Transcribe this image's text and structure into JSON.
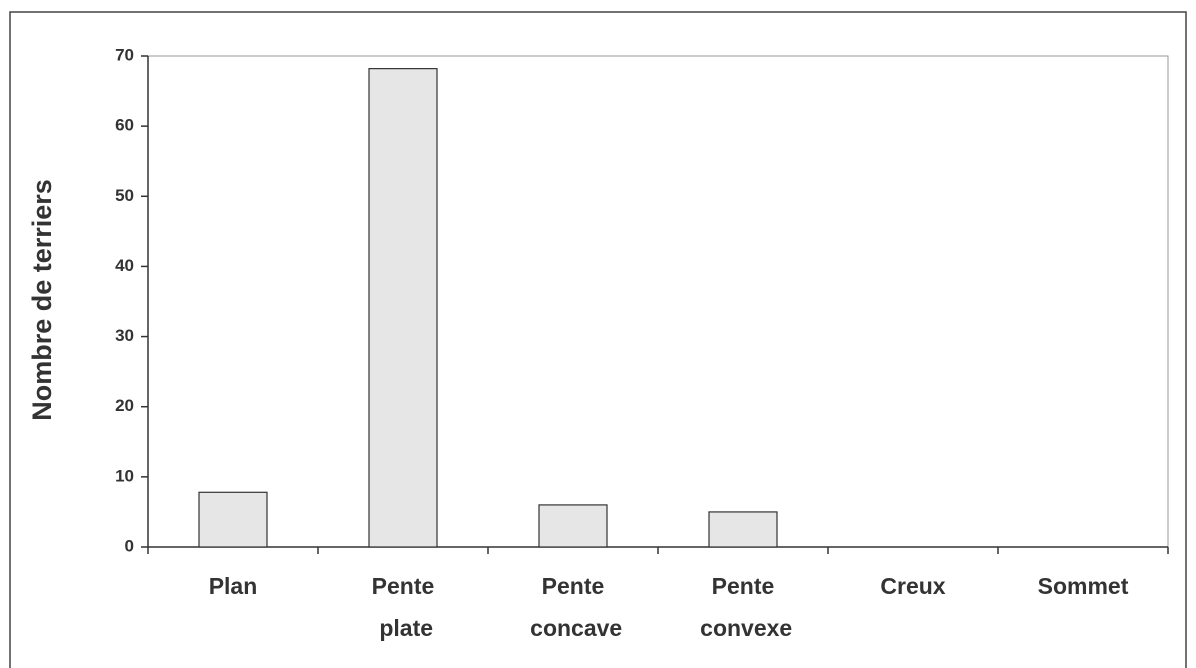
{
  "chart_data": {
    "type": "bar",
    "y_label": "Nombre de terriers",
    "categories": [
      "Plan",
      "Pente plate",
      "Pente concave",
      "Pente convexe",
      "Creux",
      "Sommet"
    ],
    "values": [
      7.8,
      68.2,
      6,
      5,
      0,
      0
    ],
    "color": "#e6e6e6",
    "ylim": [
      0,
      70
    ],
    "yticks": [
      0,
      10,
      20,
      30,
      40,
      50,
      60,
      70
    ],
    "grid": false
  }
}
